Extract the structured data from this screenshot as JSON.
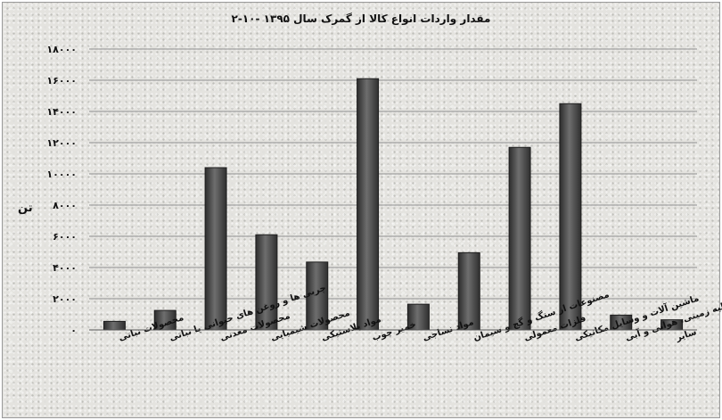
{
  "chart_data": {
    "type": "bar",
    "title": "۲-۱۰- مقدار واردات انواع کالا از گمرک سال ۱۳۹۵",
    "xlabel": "",
    "ylabel": "تن",
    "ylim": [
      0,
      18000
    ],
    "yticks": [
      0,
      2000,
      4000,
      6000,
      8000,
      10000,
      12000,
      14000,
      16000,
      18000
    ],
    "ytick_labels": [
      "۰",
      "۲۰۰۰",
      "۴۰۰۰",
      "۶۰۰۰",
      "۸۰۰۰",
      "۱۰۰۰۰",
      "۱۲۰۰۰",
      "۱۴۰۰۰",
      "۱۶۰۰۰",
      "۱۸۰۰۰"
    ],
    "categories": [
      "محصولات نباتی",
      "چربی ها و روغن های حیوانی یا نباتی",
      "محصولات معدنی",
      "محصولات شیمیایی",
      "مواد پلاستیکی",
      "خمیر چوب",
      "مواد نساجی",
      "مصنوعات از سنگ و گچ و سیمان",
      "فلزات معمولی",
      "ماشین آلات و وسایل مکانیکی",
      "وسایط نقلیه زمینی، هوایی و آبی",
      "سایر"
    ],
    "values": [
      550,
      1250,
      10400,
      6100,
      4350,
      16100,
      1650,
      4950,
      11700,
      14500,
      950,
      650
    ],
    "grid": true,
    "bar_color": "#4a4a4a"
  }
}
